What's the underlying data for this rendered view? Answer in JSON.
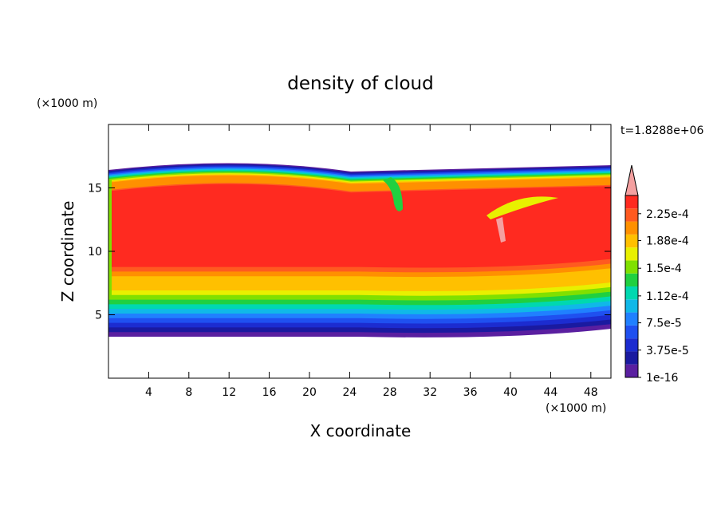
{
  "chart_data": {
    "type": "contour",
    "title": "density of cloud",
    "x_label": "X coordinate",
    "y_label": "Z coordinate",
    "x_unit": "(×1000 m)",
    "y_unit": "(×1000 m)",
    "time_label": "t=1.8288e+06",
    "xlim": [
      0,
      50
    ],
    "xticks": [
      4,
      8,
      12,
      16,
      20,
      24,
      28,
      32,
      36,
      40,
      44,
      48
    ],
    "ylim": [
      0,
      20
    ],
    "yticks": [
      5,
      10,
      15
    ],
    "colorbar": {
      "clim": [
        1e-16,
        0.00025
      ],
      "ticks": [
        {
          "value": 1e-16,
          "label": "1e-16"
        },
        {
          "value": 3.75e-05,
          "label": "3.75e-5"
        },
        {
          "value": 7.5e-05,
          "label": "7.5e-5"
        },
        {
          "value": 0.000112,
          "label": "1.12e-4"
        },
        {
          "value": 0.00015,
          "label": "1.5e-4"
        },
        {
          "value": 0.000188,
          "label": "1.88e-4"
        },
        {
          "value": 0.000225,
          "label": "2.25e-4"
        }
      ],
      "colors": [
        "#5a1fa0",
        "#1a1aa0",
        "#1c2cd0",
        "#1f50f0",
        "#2080ff",
        "#10b8e8",
        "#00d8b0",
        "#20d040",
        "#80e000",
        "#e8f000",
        "#ffc000",
        "#ff9000",
        "#ff5a20",
        "#ff2a20"
      ],
      "overflow_color": "#f4a0a0"
    }
  }
}
